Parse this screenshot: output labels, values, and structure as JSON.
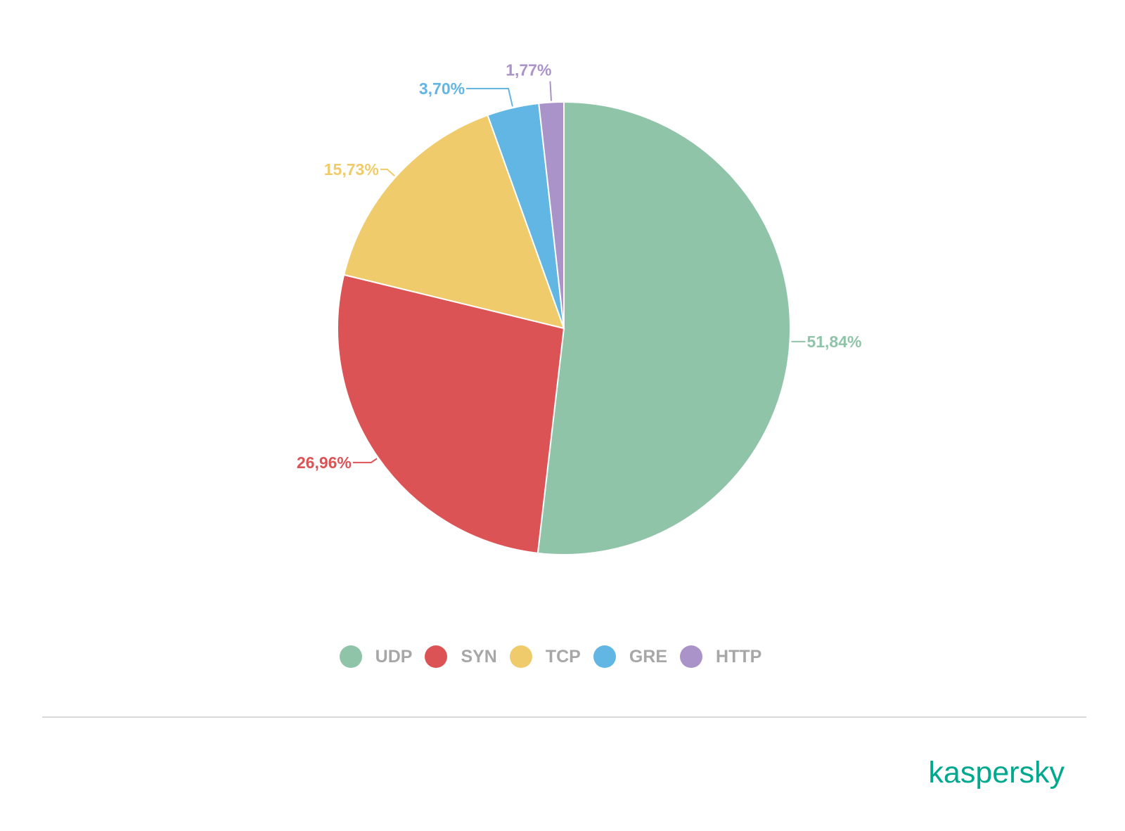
{
  "chart_data": {
    "type": "pie",
    "categories": [
      "UDP",
      "SYN",
      "TCP",
      "GRE",
      "HTTP"
    ],
    "values": [
      51.84,
      26.96,
      15.73,
      3.7,
      1.77
    ],
    "value_labels": [
      "51,84%",
      "26,96%",
      "15,73%",
      "3,70%",
      "1,77%"
    ],
    "colors": [
      "#90c4a8",
      "#dc5356",
      "#efcb6b",
      "#62b6e4",
      "#aa93c8"
    ],
    "start_angle_deg": 0,
    "direction": "clockwise",
    "legend_position": "bottom"
  },
  "legend": {
    "items": [
      {
        "label": "UDP",
        "color": "#90c4a8"
      },
      {
        "label": "SYN",
        "color": "#dc5356"
      },
      {
        "label": "TCP",
        "color": "#efcb6b"
      },
      {
        "label": "GRE",
        "color": "#62b6e4"
      },
      {
        "label": "HTTP",
        "color": "#aa93c8"
      }
    ]
  },
  "branding": {
    "logo_text": "kaspersky",
    "color": "#00a88e"
  }
}
